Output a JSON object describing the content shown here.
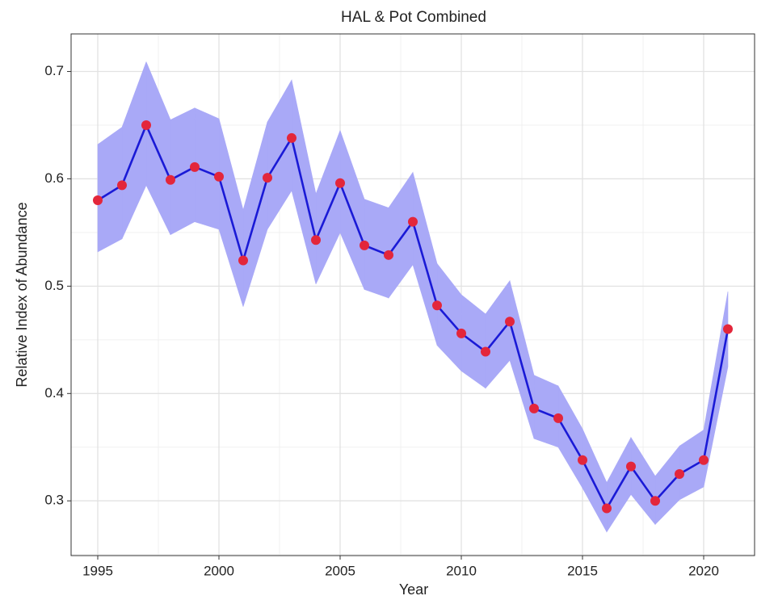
{
  "chart_data": {
    "type": "line",
    "title": "HAL & Pot Combined",
    "x_label": "Year",
    "y_label": "Relative Index of Abundance",
    "x": [
      1995,
      1996,
      1997,
      1998,
      1999,
      2000,
      2001,
      2002,
      2003,
      2004,
      2005,
      2006,
      2007,
      2008,
      2009,
      2010,
      2011,
      2012,
      2013,
      2014,
      2015,
      2016,
      2017,
      2018,
      2019,
      2020,
      2021
    ],
    "series": [
      {
        "color": "#1a1ad6",
        "marker_color": "#e3263b",
        "values": [
          0.58,
          0.594,
          0.65,
          0.599,
          0.611,
          0.602,
          0.524,
          0.601,
          0.638,
          0.543,
          0.596,
          0.538,
          0.529,
          0.56,
          0.482,
          0.456,
          0.439,
          0.467,
          0.386,
          0.377,
          0.338,
          0.293,
          0.332,
          0.3,
          0.325,
          0.338,
          0.46
        ],
        "upper": [
          0.632,
          0.648,
          0.709,
          0.655,
          0.666,
          0.656,
          0.571,
          0.653,
          0.692,
          0.586,
          0.645,
          0.581,
          0.573,
          0.606,
          0.521,
          0.492,
          0.474,
          0.505,
          0.417,
          0.407,
          0.367,
          0.317,
          0.359,
          0.323,
          0.351,
          0.366,
          0.495
        ],
        "lower": [
          0.532,
          0.544,
          0.594,
          0.548,
          0.56,
          0.553,
          0.481,
          0.553,
          0.589,
          0.502,
          0.55,
          0.497,
          0.489,
          0.52,
          0.445,
          0.421,
          0.405,
          0.431,
          0.358,
          0.35,
          0.312,
          0.271,
          0.306,
          0.278,
          0.301,
          0.313,
          0.425
        ],
        "band_color": "#a9a9f7"
      }
    ],
    "xlim": [
      1993.9,
      2022.1
    ],
    "ylim": [
      0.249,
      0.735
    ],
    "xticks": [
      1995,
      2000,
      2005,
      2010,
      2015,
      2020
    ],
    "yticks": [
      0.3,
      0.4,
      0.5,
      0.6,
      0.7
    ],
    "xminorticks": [
      1997.5,
      2002.5,
      2007.5,
      2012.5,
      2017.5
    ],
    "yminorticks": [
      0.25,
      0.35,
      0.45,
      0.55,
      0.65
    ],
    "grid": true
  }
}
